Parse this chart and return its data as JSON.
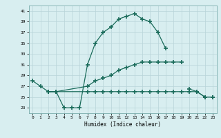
{
  "xlabel": "Humidex (Indice chaleur)",
  "x": [
    0,
    1,
    2,
    3,
    4,
    5,
    6,
    7,
    8,
    9,
    10,
    11,
    12,
    13,
    14,
    15,
    16,
    17,
    18,
    19,
    20,
    21,
    22,
    23
  ],
  "line1": [
    28,
    27,
    26,
    26,
    23,
    23,
    23,
    31,
    35,
    37,
    38,
    39.5,
    40,
    40.5,
    39.5,
    39,
    37,
    34,
    null,
    null,
    null,
    null,
    null,
    null
  ],
  "line2": [
    null,
    null,
    26,
    26,
    null,
    null,
    null,
    27,
    28,
    28.5,
    29,
    30,
    30.5,
    31,
    31.5,
    31.5,
    31.5,
    31.5,
    31.5,
    31.5,
    null,
    null,
    null,
    null
  ],
  "line3": [
    null,
    null,
    26,
    26,
    null,
    null,
    null,
    26,
    26,
    26,
    26,
    26,
    26,
    26,
    26,
    26,
    26,
    26,
    26,
    26,
    26,
    26,
    25,
    25
  ],
  "line4": [
    null,
    null,
    null,
    null,
    null,
    null,
    null,
    null,
    null,
    null,
    null,
    null,
    null,
    null,
    null,
    null,
    null,
    null,
    null,
    null,
    26.5,
    26,
    25,
    25
  ],
  "ylim": [
    22,
    42
  ],
  "yticks": [
    23,
    25,
    27,
    29,
    31,
    33,
    35,
    37,
    39,
    41
  ],
  "xticks": [
    0,
    1,
    2,
    3,
    4,
    5,
    6,
    7,
    8,
    9,
    10,
    11,
    12,
    13,
    14,
    15,
    16,
    17,
    18,
    19,
    20,
    21,
    22,
    23
  ],
  "line_color": "#1a6b5a",
  "bg_color": "#d8eef0",
  "grid_color": "#b8d4d8"
}
